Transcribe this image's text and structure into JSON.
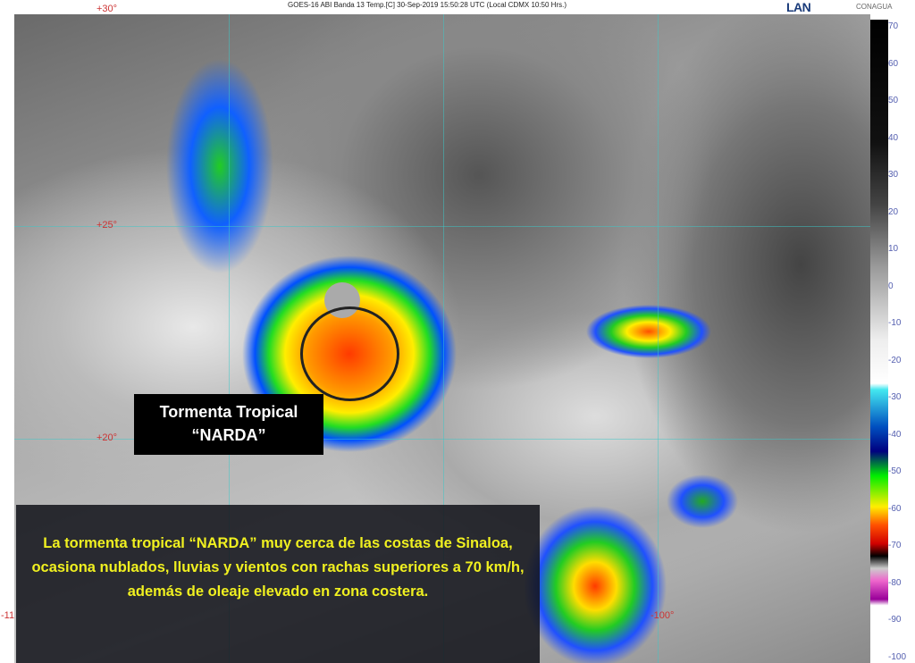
{
  "header": {
    "title": "GOES-16 ABI Banda 13 Temp.[C] 30-Sep-2019 15:50:28 UTC (Local CDMX 10:50 Hrs.)",
    "logos": [
      "LAN",
      "CONAGUA"
    ]
  },
  "map": {
    "lat_labels": [
      "+30°",
      "+25°",
      "+20°"
    ],
    "lon_labels": [
      "-11",
      "-100°"
    ],
    "storm_label": [
      "Tormenta Tropical",
      "“NARDA”"
    ],
    "caption": "La tormenta tropical “NARDA” muy cerca de las costas de Sinaloa, ocasiona nublados, lluvias y vientos con rachas superiores a 70 km/h, además de oleaje elevado en zona costera."
  },
  "color_scale": {
    "unit": "°C",
    "ticks": [
      "70",
      "60",
      "50",
      "40",
      "30",
      "20",
      "10",
      "0",
      "-10",
      "-20",
      "-30",
      "-40",
      "-50",
      "-60",
      "-70",
      "-80",
      "-90",
      "-100"
    ]
  }
}
